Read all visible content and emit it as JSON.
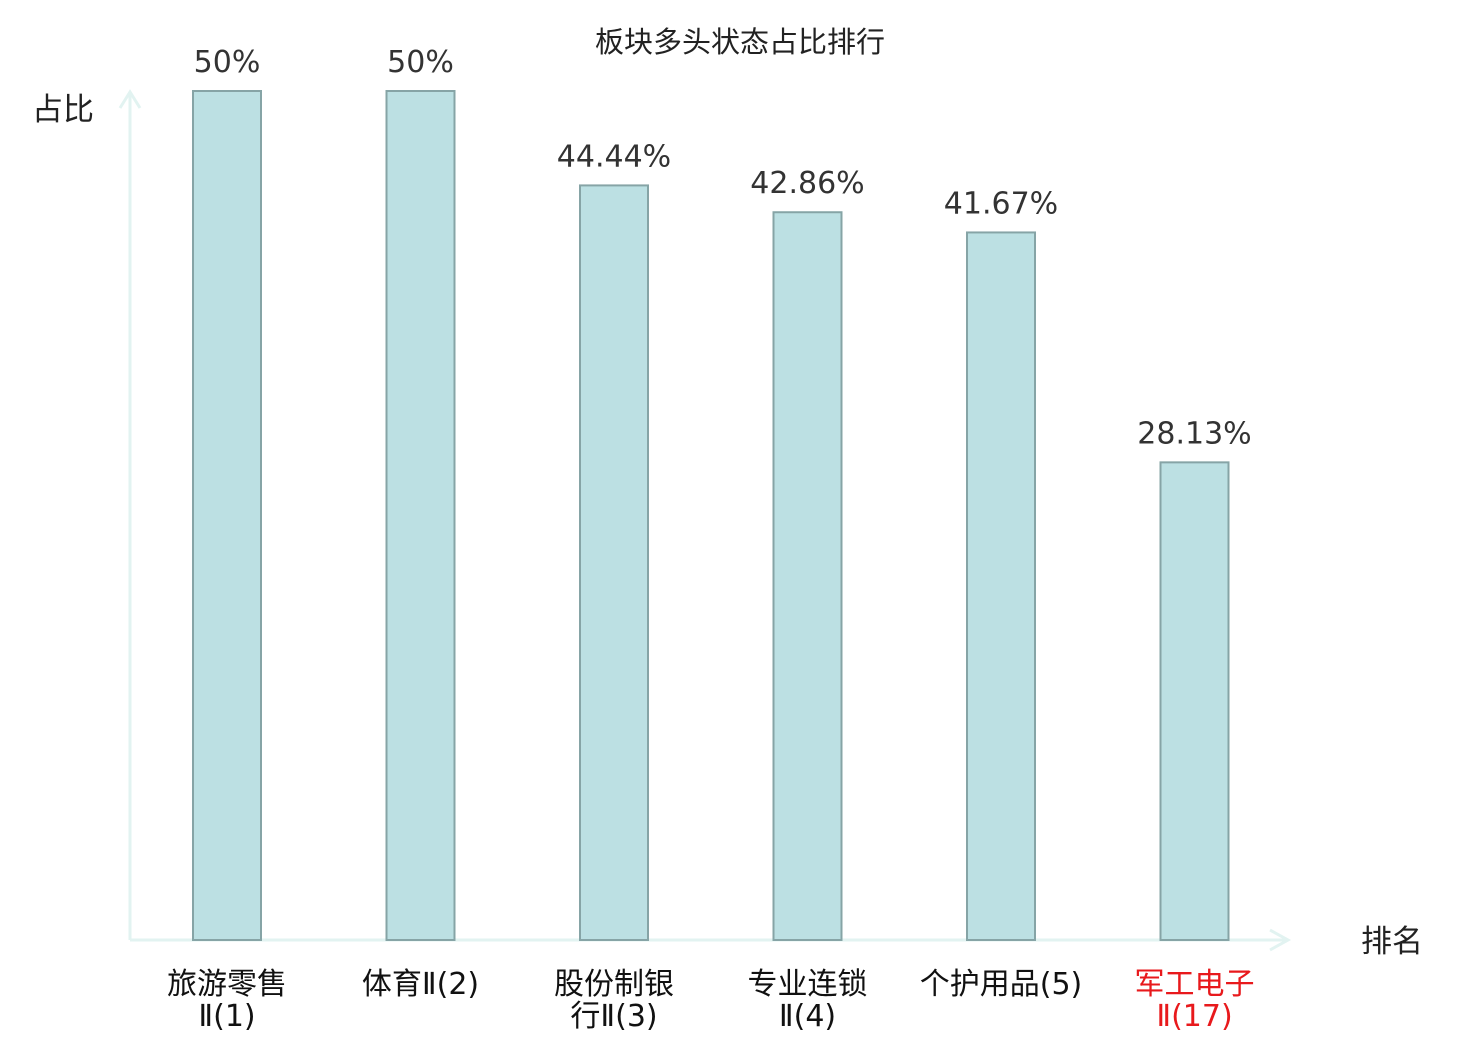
{
  "chart_data": {
    "type": "bar",
    "title": "板块多头状态占比排行",
    "ylabel": "占比",
    "xlabel": "排名",
    "ylim": [
      0,
      50
    ],
    "grid": false,
    "legend": "none",
    "categories": [
      [
        "旅游零售",
        "Ⅱ(1)"
      ],
      [
        "体育Ⅱ(2)"
      ],
      [
        "股份制银",
        "行Ⅱ(3)"
      ],
      [
        "专业连锁",
        "Ⅱ(4)"
      ],
      [
        "个护用品(5)"
      ],
      [
        "军工电子",
        "Ⅱ(17)"
      ]
    ],
    "values": [
      50,
      50,
      44.44,
      42.86,
      41.67,
      28.13
    ],
    "data_labels": [
      "50%",
      "50%",
      "44.44%",
      "42.86%",
      "41.67%",
      "28.13%"
    ],
    "highlight_index": 5
  },
  "colors": {
    "bar_fill": "#bce0e3",
    "bar_stroke": "#86a4a6",
    "axis": "#e2f3f1",
    "text": "#333333",
    "category_text": "#111111",
    "highlight": "#e8191c"
  }
}
